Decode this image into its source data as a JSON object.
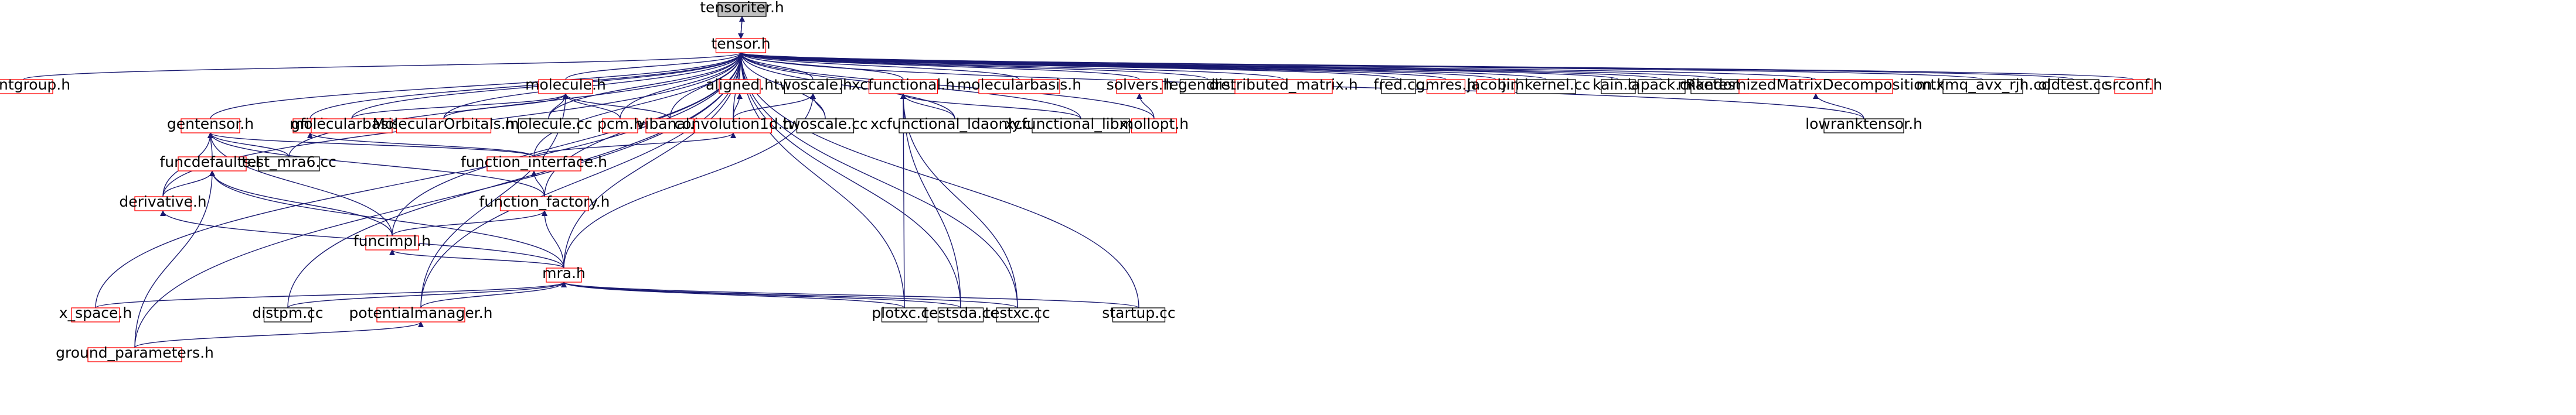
{
  "colors": {
    "root_fill": "#bfbfbf",
    "node_border_black": "#000000",
    "node_border_red": "#ff0000",
    "edge": "#191970"
  },
  "nodes": [
    {
      "id": "tensoriter",
      "label": "tensoriter.h",
      "style": "root"
    },
    {
      "id": "tensor",
      "label": "tensor.h",
      "style": "red"
    },
    {
      "id": "pointgroup",
      "label": "pointgroup.h",
      "style": "red"
    },
    {
      "id": "molecule",
      "label": "molecule.h",
      "style": "red"
    },
    {
      "id": "aligned",
      "label": "aligned.h",
      "style": "red"
    },
    {
      "id": "twoscale_h",
      "label": "twoscale.h",
      "style": "black"
    },
    {
      "id": "xcfunctional",
      "label": "xcfunctional.h",
      "style": "red"
    },
    {
      "id": "molecularbasis_top",
      "label": "molecularbasis.h",
      "style": "red"
    },
    {
      "id": "solvers",
      "label": "solvers.h",
      "style": "red"
    },
    {
      "id": "legendre",
      "label": "legendre.cc",
      "style": "black"
    },
    {
      "id": "distributed_matrix",
      "label": "distributed_matrix.h",
      "style": "red"
    },
    {
      "id": "fred",
      "label": "fred.cc",
      "style": "black"
    },
    {
      "id": "gmres",
      "label": "gmres.h",
      "style": "red"
    },
    {
      "id": "jacobi",
      "label": "jacobi.h",
      "style": "red"
    },
    {
      "id": "jimkernel",
      "label": "jimkernel.cc",
      "style": "black"
    },
    {
      "id": "kain",
      "label": "kain.cc",
      "style": "black"
    },
    {
      "id": "lapack",
      "label": "lapack.cc",
      "style": "black"
    },
    {
      "id": "miketest",
      "label": "miketest.cc",
      "style": "black"
    },
    {
      "id": "rmd",
      "label": "RandomizedMatrixDecomposition.h",
      "style": "red"
    },
    {
      "id": "mtxmq",
      "label": "mtxmq_avx_rjh.cc",
      "style": "black"
    },
    {
      "id": "oldtest",
      "label": "oldtest.cc",
      "style": "black"
    },
    {
      "id": "srconf",
      "label": "srconf.h",
      "style": "red"
    },
    {
      "id": "gentensor",
      "label": "gentensor.h",
      "style": "red"
    },
    {
      "id": "gfit",
      "label": "gfit.h",
      "style": "red"
    },
    {
      "id": "molecularbasis_mid",
      "label": "molecularbasis.h",
      "style": "red"
    },
    {
      "id": "molecularorbitals",
      "label": "MolecularOrbitals.h",
      "style": "red"
    },
    {
      "id": "molecule_cc",
      "label": "molecule.cc",
      "style": "black"
    },
    {
      "id": "pcm",
      "label": "pcm.h",
      "style": "red"
    },
    {
      "id": "vibanal",
      "label": "vibanal.h",
      "style": "red"
    },
    {
      "id": "convolution1d",
      "label": "convolution1d.h",
      "style": "red"
    },
    {
      "id": "twoscale_cc",
      "label": "twoscale.cc",
      "style": "black"
    },
    {
      "id": "xc_ldaonly",
      "label": "xcfunctional_ldaonly.cc",
      "style": "black"
    },
    {
      "id": "xc_libxc",
      "label": "xcfunctional_libxc.cc",
      "style": "black"
    },
    {
      "id": "mollopt",
      "label": "mollopt.h",
      "style": "red"
    },
    {
      "id": "lowranktensor",
      "label": "lowranktensor.h",
      "style": "black"
    },
    {
      "id": "funcdefaults",
      "label": "funcdefaults.h",
      "style": "red"
    },
    {
      "id": "test_mra6",
      "label": "test_mra6.cc",
      "style": "black"
    },
    {
      "id": "function_interface",
      "label": "function_interface.h",
      "style": "red"
    },
    {
      "id": "derivative",
      "label": "derivative.h",
      "style": "red"
    },
    {
      "id": "function_factory",
      "label": "function_factory.h",
      "style": "red"
    },
    {
      "id": "funcimpl",
      "label": "funcimpl.h",
      "style": "red"
    },
    {
      "id": "mra",
      "label": "mra.h",
      "style": "red"
    },
    {
      "id": "x_space",
      "label": "x_space.h",
      "style": "red"
    },
    {
      "id": "distpm",
      "label": "distpm.cc",
      "style": "black"
    },
    {
      "id": "potentialmanager",
      "label": "potentialmanager.h",
      "style": "red"
    },
    {
      "id": "plotxc",
      "label": "plotxc.cc",
      "style": "black"
    },
    {
      "id": "testsda",
      "label": "testsda.cc",
      "style": "black"
    },
    {
      "id": "testxc",
      "label": "testxc.cc",
      "style": "black"
    },
    {
      "id": "startup",
      "label": "startup.cc",
      "style": "black"
    },
    {
      "id": "ground_parameters",
      "label": "ground_parameters.h",
      "style": "red"
    }
  ],
  "edges": [
    [
      "tensoriter",
      "tensor"
    ],
    [
      "tensor",
      "tensoriter"
    ],
    [
      "pointgroup",
      "tensor"
    ],
    [
      "molecule",
      "tensor"
    ],
    [
      "aligned",
      "tensor"
    ],
    [
      "twoscale_h",
      "tensor"
    ],
    [
      "xcfunctional",
      "tensor"
    ],
    [
      "molecularbasis_top",
      "tensor"
    ],
    [
      "solvers",
      "tensor"
    ],
    [
      "legendre",
      "tensor"
    ],
    [
      "distributed_matrix",
      "tensor"
    ],
    [
      "fred",
      "tensor"
    ],
    [
      "gmres",
      "tensor"
    ],
    [
      "jacobi",
      "tensor"
    ],
    [
      "jimkernel",
      "tensor"
    ],
    [
      "kain",
      "tensor"
    ],
    [
      "lapack",
      "tensor"
    ],
    [
      "miketest",
      "tensor"
    ],
    [
      "rmd",
      "tensor"
    ],
    [
      "mtxmq",
      "tensor"
    ],
    [
      "oldtest",
      "tensor"
    ],
    [
      "srconf",
      "tensor"
    ],
    [
      "gentensor",
      "tensor"
    ],
    [
      "gfit",
      "tensor"
    ],
    [
      "molecularbasis_mid",
      "tensor"
    ],
    [
      "molecularorbitals",
      "tensor"
    ],
    [
      "molecule_cc",
      "tensor"
    ],
    [
      "pcm",
      "tensor"
    ],
    [
      "vibanal",
      "tensor"
    ],
    [
      "convolution1d",
      "tensor"
    ],
    [
      "twoscale_cc",
      "tensor"
    ],
    [
      "xc_ldaonly",
      "tensor"
    ],
    [
      "xc_libxc",
      "tensor"
    ],
    [
      "mollopt",
      "tensor"
    ],
    [
      "lowranktensor",
      "tensor"
    ],
    [
      "test_mra6",
      "tensor"
    ],
    [
      "function_interface",
      "tensor"
    ],
    [
      "derivative",
      "tensor"
    ],
    [
      "function_factory",
      "tensor"
    ],
    [
      "funcimpl",
      "tensor"
    ],
    [
      "mra",
      "tensor"
    ],
    [
      "x_space",
      "tensor"
    ],
    [
      "distpm",
      "tensor"
    ],
    [
      "potentialmanager",
      "tensor"
    ],
    [
      "plotxc",
      "tensor"
    ],
    [
      "testsda",
      "tensor"
    ],
    [
      "testxc",
      "tensor"
    ],
    [
      "startup",
      "tensor"
    ],
    [
      "ground_parameters",
      "tensor"
    ],
    [
      "molecularbasis_mid",
      "molecule"
    ],
    [
      "molecularorbitals",
      "molecule"
    ],
    [
      "molecule_cc",
      "molecule"
    ],
    [
      "pcm",
      "molecule"
    ],
    [
      "vibanal",
      "molecule"
    ],
    [
      "potentialmanager",
      "molecule"
    ],
    [
      "convolution1d",
      "aligned"
    ],
    [
      "convolution1d",
      "twoscale_h"
    ],
    [
      "twoscale_cc",
      "twoscale_h"
    ],
    [
      "mra",
      "twoscale_h"
    ],
    [
      "xc_ldaonly",
      "xcfunctional"
    ],
    [
      "xc_libxc",
      "xcfunctional"
    ],
    [
      "plotxc",
      "xcfunctional"
    ],
    [
      "testxc",
      "xcfunctional"
    ],
    [
      "testsda",
      "xcfunctional"
    ],
    [
      "mollopt",
      "solvers"
    ],
    [
      "lowranktensor",
      "rmd"
    ],
    [
      "funcdefaults",
      "gentensor"
    ],
    [
      "test_mra6",
      "gentensor"
    ],
    [
      "function_interface",
      "gentensor"
    ],
    [
      "derivative",
      "gentensor"
    ],
    [
      "funcimpl",
      "gentensor"
    ],
    [
      "function_factory",
      "gentensor"
    ],
    [
      "function_interface",
      "gfit"
    ],
    [
      "function_interface",
      "convolution1d"
    ],
    [
      "derivative",
      "funcdefaults"
    ],
    [
      "funcimpl",
      "funcdefaults"
    ],
    [
      "mra",
      "funcdefaults"
    ],
    [
      "ground_parameters",
      "funcdefaults"
    ],
    [
      "function_factory",
      "function_interface"
    ],
    [
      "funcimpl",
      "function_factory"
    ],
    [
      "mra",
      "function_factory"
    ],
    [
      "mra",
      "funcimpl"
    ],
    [
      "mra",
      "derivative"
    ],
    [
      "x_space",
      "mra"
    ],
    [
      "distpm",
      "mra"
    ],
    [
      "potentialmanager",
      "mra"
    ],
    [
      "plotxc",
      "mra"
    ],
    [
      "testsda",
      "mra"
    ],
    [
      "testxc",
      "mra"
    ],
    [
      "startup",
      "mra"
    ],
    [
      "ground_parameters",
      "potentialmanager"
    ]
  ]
}
